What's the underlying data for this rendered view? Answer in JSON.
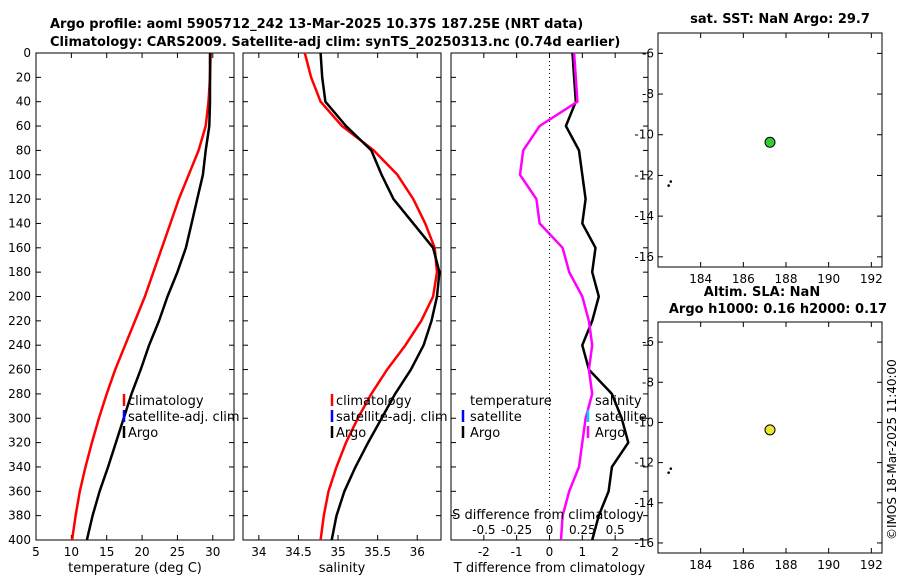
{
  "header": {
    "line1": "Argo profile: aoml 5905712_242 13-Mar-2025 10.37S 187.25E (NRT data)",
    "line2": "Climatology: CARS2009. Satellite-adj clim: synTS_20250313.nc (0.74d earlier)",
    "sst_title": "sat. SST: NaN Argo: 29.7",
    "sla_title1": "Altim. SLA: NaN",
    "sla_title2": "Argo h1000: 0.16 h2000: 0.17",
    "timestamp": "©IMOS 18-Mar-2025 11:40:00"
  },
  "colors": {
    "climatology": "#ff0000",
    "satellite": "#0000ff",
    "argo": "#000000",
    "salinity_diff": "#ff00ff",
    "satellite_s": "#00d0ff",
    "sst_marker": "#33cc33",
    "sla_marker": "#e8e832"
  },
  "chart_data": [
    {
      "id": "temperature",
      "type": "line",
      "xlabel": "temperature (deg C)",
      "xlim": [
        5,
        33
      ],
      "xticks": [
        5,
        10,
        15,
        20,
        25,
        30
      ],
      "ylim": [
        0,
        400
      ],
      "yticks": [
        0,
        20,
        40,
        60,
        80,
        100,
        120,
        140,
        160,
        180,
        200,
        220,
        240,
        260,
        280,
        300,
        320,
        340,
        360,
        380,
        400
      ],
      "legend": [
        "climatology",
        "satellite-adj. clim",
        "Argo"
      ],
      "series": [
        {
          "name": "climatology",
          "color": "#ff0000",
          "x": [
            29.7,
            29.6,
            29.4,
            29.0,
            28.0,
            26.6,
            25.2,
            24.0,
            22.8,
            21.6,
            20.4,
            19.0,
            17.6,
            16.2,
            15.0,
            13.9,
            12.9,
            12.0,
            11.2,
            10.6,
            10.1
          ],
          "y": [
            0,
            20,
            40,
            60,
            80,
            100,
            120,
            140,
            160,
            180,
            200,
            220,
            240,
            260,
            280,
            300,
            320,
            340,
            360,
            380,
            400
          ]
        },
        {
          "name": "Argo",
          "color": "#000000",
          "x": [
            29.6,
            29.6,
            29.6,
            29.5,
            29.0,
            28.6,
            27.8,
            27.0,
            26.2,
            25.0,
            23.6,
            22.4,
            21.0,
            19.8,
            18.5,
            17.4,
            16.3,
            15.2,
            14.0,
            13.0,
            12.4,
            12.2
          ],
          "y": [
            0,
            20,
            40,
            60,
            80,
            100,
            120,
            140,
            160,
            180,
            200,
            220,
            240,
            260,
            280,
            300,
            320,
            340,
            360,
            380,
            395,
            400
          ]
        }
      ]
    },
    {
      "id": "salinity",
      "type": "line",
      "xlabel": "salinity",
      "xlim": [
        33.8,
        36.3
      ],
      "xticks": [
        34,
        34.5,
        35,
        35.5,
        36
      ],
      "ylim": [
        0,
        400
      ],
      "legend": [
        "climatology",
        "satellite-adj. clim",
        "Argo"
      ],
      "series": [
        {
          "name": "climatology",
          "color": "#ff0000",
          "x": [
            34.58,
            34.66,
            34.78,
            35.05,
            35.45,
            35.75,
            35.95,
            36.1,
            36.22,
            36.25,
            36.2,
            36.05,
            35.85,
            35.62,
            35.42,
            35.25,
            35.1,
            34.98,
            34.88,
            34.82,
            34.78
          ],
          "y": [
            0,
            20,
            40,
            60,
            80,
            100,
            120,
            140,
            160,
            180,
            200,
            220,
            240,
            260,
            280,
            300,
            320,
            340,
            360,
            380,
            400
          ]
        },
        {
          "name": "Argo",
          "color": "#000000",
          "x": [
            34.78,
            34.8,
            34.84,
            35.1,
            35.42,
            35.55,
            35.7,
            35.95,
            36.2,
            36.28,
            36.25,
            36.18,
            36.08,
            35.92,
            35.72,
            35.55,
            35.38,
            35.22,
            35.08,
            34.98,
            34.92
          ],
          "y": [
            0,
            20,
            40,
            60,
            80,
            100,
            120,
            140,
            160,
            180,
            200,
            220,
            240,
            260,
            280,
            300,
            320,
            340,
            360,
            380,
            400
          ]
        }
      ]
    },
    {
      "id": "differences",
      "type": "line",
      "xlabel": "T difference from climatology",
      "xlabel_top": "S difference from climatology",
      "xlim": [
        -3,
        3
      ],
      "xticks": [
        -2,
        -1,
        0,
        1,
        2
      ],
      "xticks_s_labels": [
        "-0.5",
        "-0.25",
        "0",
        "0.25",
        "0.5"
      ],
      "xticks_s_values": [
        -0.5,
        -0.25,
        0,
        0.25,
        0.5
      ],
      "s_scale": 4,
      "ylim": [
        0,
        400
      ],
      "legend_t": [
        "temperature",
        "satellite",
        "Argo"
      ],
      "legend_s": [
        "salinity",
        "satellite",
        "Argo"
      ],
      "series": [
        {
          "name": "T diff Argo",
          "color": "#000000",
          "x": [
            0.7,
            0.75,
            0.8,
            0.5,
            0.9,
            1.0,
            1.1,
            1.0,
            1.4,
            1.3,
            1.5,
            1.3,
            1.0,
            1.2,
            1.9,
            2.2,
            2.4,
            1.9,
            1.8,
            1.5,
            1.3
          ],
          "y": [
            0,
            20,
            40,
            60,
            80,
            100,
            120,
            140,
            160,
            180,
            200,
            220,
            240,
            260,
            280,
            300,
            320,
            340,
            360,
            380,
            400
          ]
        },
        {
          "name": "S diff Argo",
          "color": "#ff00ff",
          "x": [
            0.75,
            0.8,
            0.85,
            -0.3,
            -0.8,
            -0.9,
            -0.4,
            -0.3,
            0.4,
            0.6,
            1.0,
            1.2,
            1.3,
            1.2,
            1.3,
            1.1,
            1.0,
            0.9,
            0.6,
            0.4,
            0.35
          ],
          "y": [
            0,
            20,
            40,
            60,
            80,
            100,
            120,
            140,
            160,
            180,
            200,
            220,
            240,
            260,
            280,
            300,
            320,
            340,
            360,
            380,
            400
          ]
        }
      ]
    },
    {
      "id": "sst_map",
      "type": "scatter",
      "xlim": [
        182,
        192.5
      ],
      "ylim": [
        -16.5,
        -5
      ],
      "xticks": [
        184,
        186,
        188,
        190,
        192
      ],
      "yticks": [
        -6,
        -8,
        -10,
        -12,
        -14,
        -16
      ],
      "points": [
        {
          "x": 187.25,
          "y": -10.37,
          "color": "#33cc33"
        }
      ],
      "small_points": [
        {
          "x": 182.6,
          "y": -12.3
        },
        {
          "x": 182.5,
          "y": -12.5
        }
      ]
    },
    {
      "id": "sla_map",
      "type": "scatter",
      "xlim": [
        182,
        192.5
      ],
      "ylim": [
        -16.5,
        -5
      ],
      "xticks": [
        184,
        186,
        188,
        190,
        192
      ],
      "yticks": [
        -6,
        -8,
        -10,
        -12,
        -14,
        -16
      ],
      "points": [
        {
          "x": 187.25,
          "y": -10.37,
          "color": "#e8e832"
        }
      ],
      "small_points": [
        {
          "x": 182.6,
          "y": -12.3
        },
        {
          "x": 182.5,
          "y": -12.5
        }
      ]
    }
  ]
}
